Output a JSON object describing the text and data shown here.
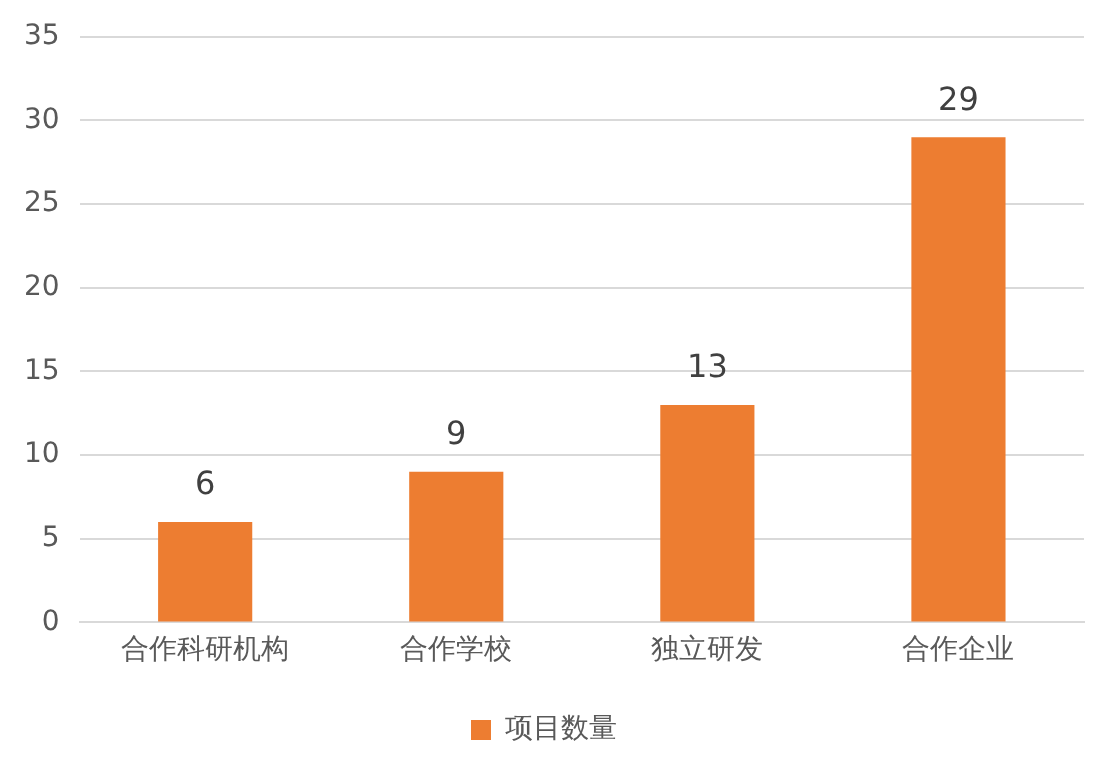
{
  "chart_data": {
    "type": "bar",
    "categories": [
      "合作科研机构",
      "合作学校",
      "独立研发",
      "合作企业"
    ],
    "series": [
      {
        "name": "项目数量",
        "color": "#ed7d31",
        "values": [
          6,
          9,
          13,
          29
        ]
      }
    ],
    "ylim": [
      0,
      35
    ],
    "yticks": [
      0,
      5,
      10,
      15,
      20,
      25,
      30,
      35
    ],
    "grid": "y",
    "legend": "bottom",
    "data_labels": true
  }
}
